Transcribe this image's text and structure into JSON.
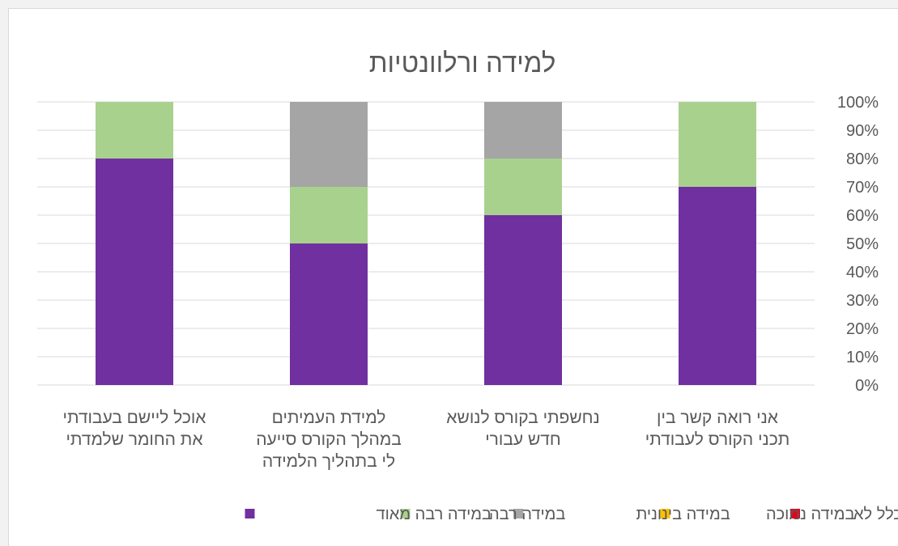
{
  "chart_data": {
    "type": "bar",
    "stacked": true,
    "percent": true,
    "title": "למידה ורלוונטיות",
    "xlabel": "",
    "ylabel": "",
    "ylim": [
      0,
      100
    ],
    "y_ticks": [
      "0%",
      "10%",
      "20%",
      "30%",
      "40%",
      "50%",
      "60%",
      "70%",
      "80%",
      "90%",
      "100%"
    ],
    "grid": true,
    "legend_position": "bottom",
    "categories": [
      [
        "אני רואה קשר בין",
        "תכני הקורס לעבודתי"
      ],
      [
        "נחשפתי בקורס לנושא",
        "חדש עבורי"
      ],
      [
        "למידת העמיתים",
        "במהלך הקורס סייעה",
        "לי בתהליך הלמידה"
      ],
      [
        "אוכל ליישם בעבודתי",
        "את החומר שלמדתי"
      ]
    ],
    "series": [
      {
        "name": "כלל לא",
        "color": "#e8001c",
        "values": [
          0,
          0,
          0,
          0
        ]
      },
      {
        "name": "במידה נמוכה",
        "color": "#ffc000",
        "values": [
          0,
          0,
          0,
          0
        ]
      },
      {
        "name": "במידה בינונית",
        "color": "#a5a5a5",
        "values": [
          0,
          20,
          30,
          0
        ]
      },
      {
        "name": "במידה רבה",
        "color": "#a9d18e",
        "values": [
          30,
          20,
          20,
          20
        ]
      },
      {
        "name": "במידה רבה מאוד",
        "color": "#7030a0",
        "values": [
          70,
          60,
          50,
          80
        ]
      }
    ],
    "stack_order": [
      "במידה רבה מאוד",
      "במידה רבה",
      "במידה בינונית",
      "במידה נמוכה",
      "כלל לא"
    ],
    "legend_order": [
      "כלל לא",
      "במידה נמוכה",
      "במידה בינונית",
      "במידה רבה",
      "במידה רבה מאוד"
    ],
    "gridline_color": "#d9d9d9"
  }
}
